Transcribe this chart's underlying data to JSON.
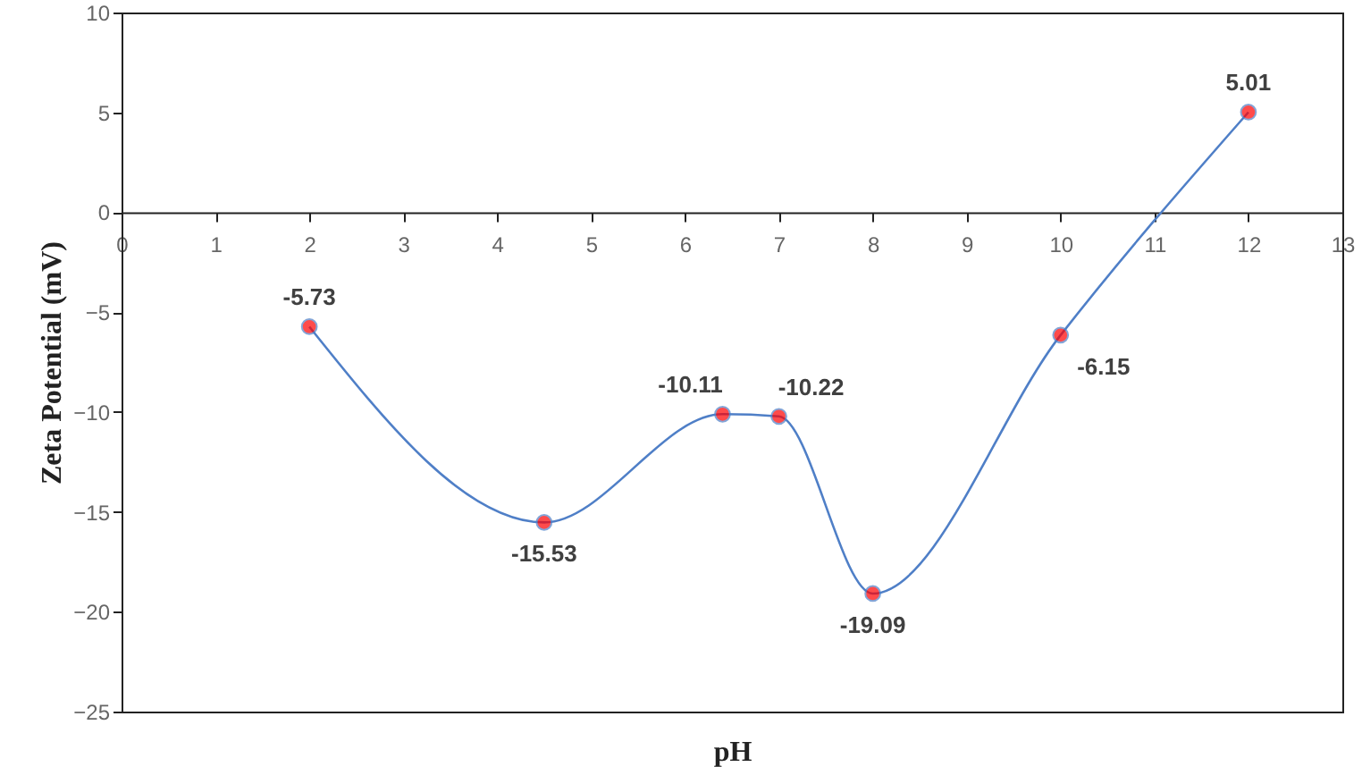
{
  "chart_data": {
    "type": "line",
    "xlabel": "pH",
    "ylabel": "Zeta Potential (mV)",
    "x": [
      2,
      4.5,
      6.4,
      7,
      8,
      10,
      12
    ],
    "series": [
      {
        "color": "#4f7fc7",
        "values": [
          -5.73,
          -15.53,
          -10.11,
          -10.22,
          -19.09,
          -6.15,
          5.01
        ]
      }
    ],
    "marker": "circle",
    "data_labels": true,
    "grid": false,
    "xlim": [
      0,
      13
    ],
    "xticks": [
      0,
      1,
      2,
      3,
      4,
      5,
      6,
      7,
      8,
      9,
      10,
      11,
      12,
      13
    ],
    "ylim": [
      -25,
      10
    ],
    "yticks": [
      -25,
      -20,
      -15,
      -10,
      -5,
      0,
      5,
      10
    ]
  }
}
